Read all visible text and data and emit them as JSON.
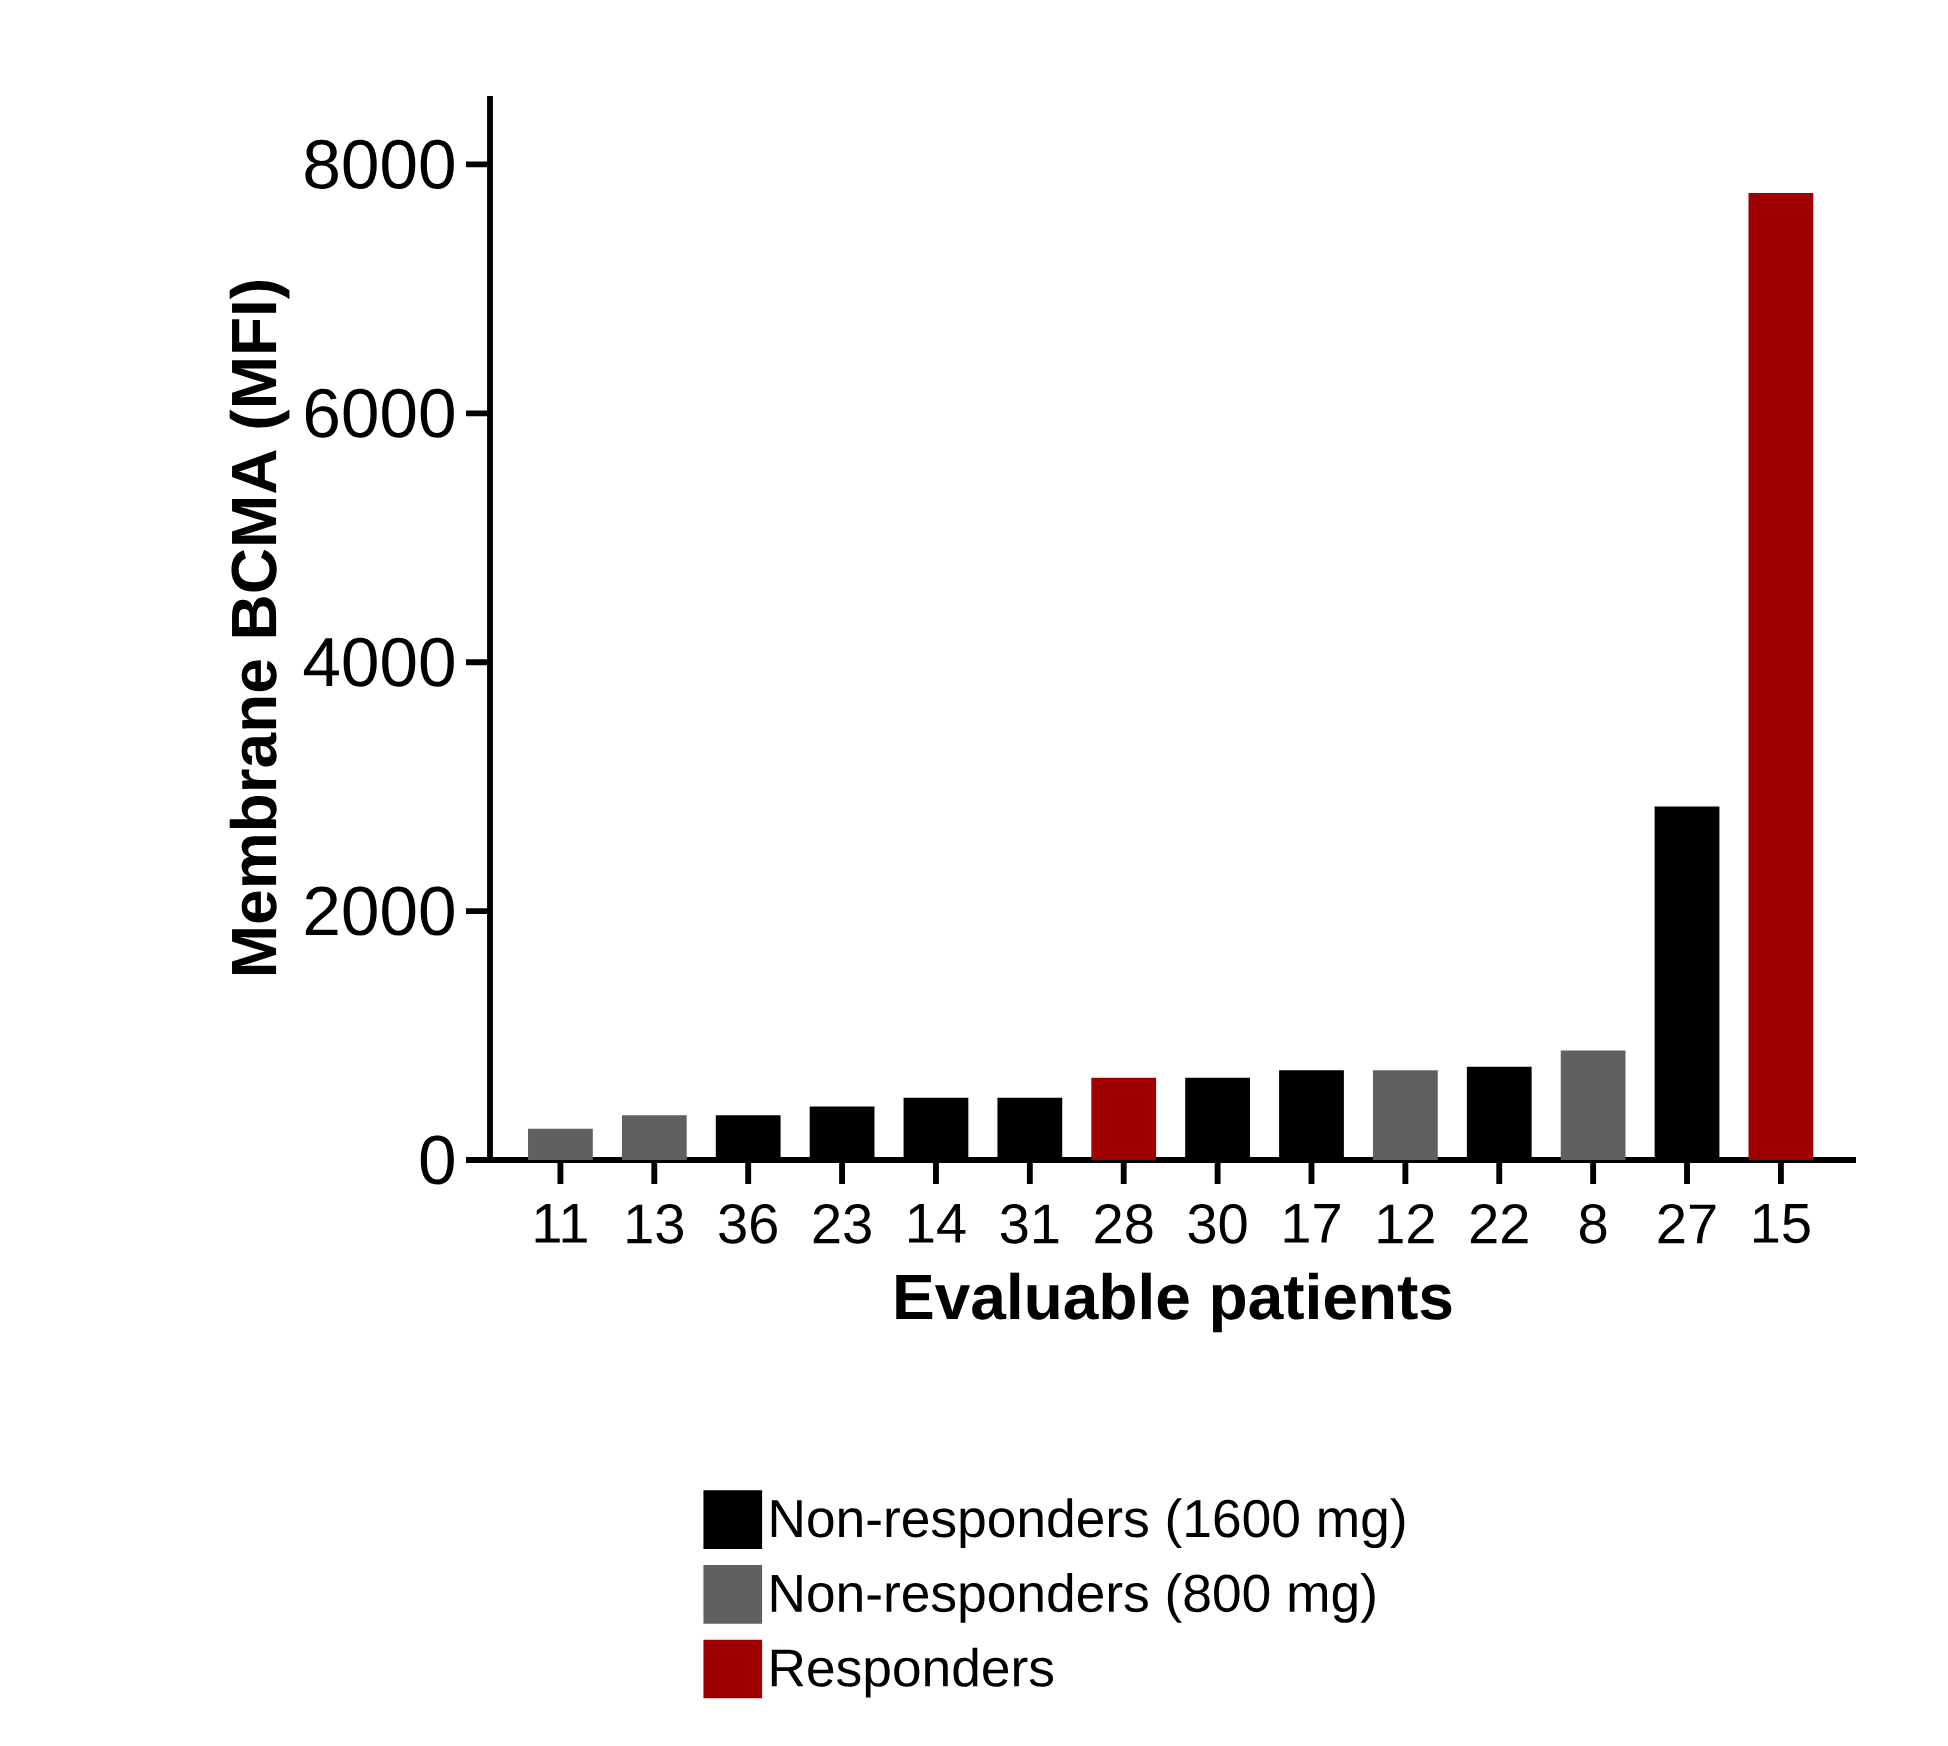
{
  "chart_data": {
    "type": "bar",
    "xlabel": "Evaluable patients",
    "ylabel": "Membrane BCMA (MFI)",
    "categories": [
      "11",
      "13",
      "36",
      "23",
      "14",
      "31",
      "28",
      "30",
      "17",
      "12",
      "22",
      "8",
      "27",
      "15"
    ],
    "series": [
      {
        "name": "Non-responders (1600 mg)",
        "color": "#000000",
        "values": [
          null,
          null,
          360,
          430,
          500,
          500,
          null,
          660,
          720,
          null,
          750,
          null,
          2840,
          null
        ]
      },
      {
        "name": "Non-responders (800 mg)",
        "color": "#606060",
        "values": [
          250,
          360,
          null,
          null,
          null,
          null,
          null,
          null,
          null,
          720,
          null,
          880,
          null,
          null
        ]
      },
      {
        "name": "Responders",
        "color": "#a00000",
        "values": [
          null,
          null,
          null,
          null,
          null,
          null,
          660,
          null,
          null,
          null,
          null,
          null,
          null,
          7770
        ]
      }
    ],
    "ylim": [
      0,
      8550
    ],
    "yticks": [
      0,
      2000,
      4000,
      6000,
      8000
    ],
    "grid": false,
    "legend": "bottom"
  }
}
